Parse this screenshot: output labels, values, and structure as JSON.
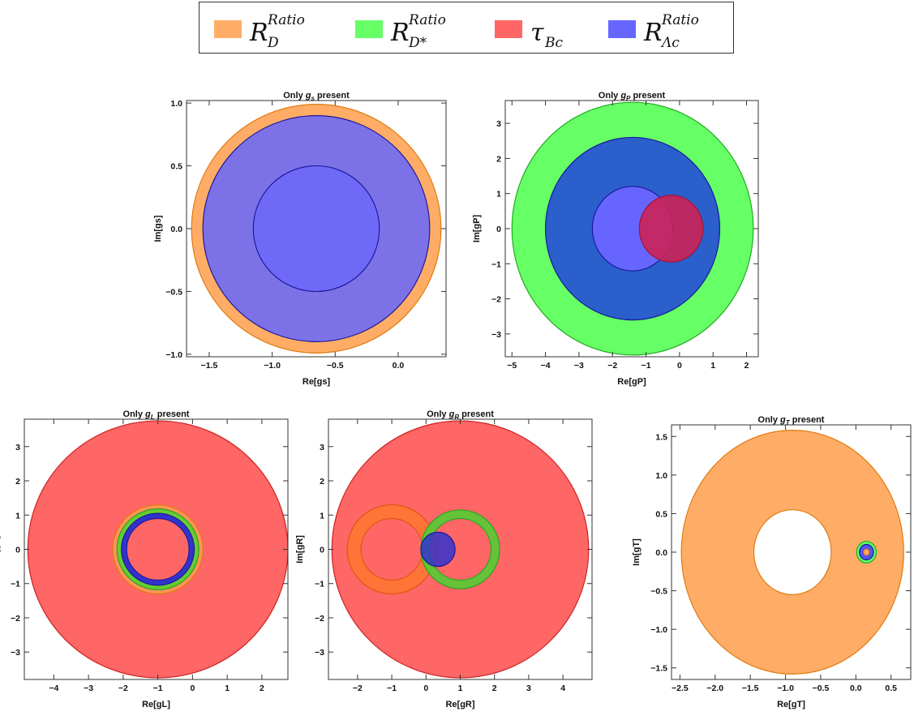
{
  "colors": {
    "orange_fill": "#FFAD66",
    "orange_edge": "#E07A10",
    "green_fill": "#66FF66",
    "green_edge": "#22AA22",
    "red_fill": "#FF6666",
    "red_edge": "#CC2222",
    "blue_fill": "#6666FF",
    "blue_edge": "#1A1A99"
  },
  "legend": {
    "items": [
      {
        "base": "R",
        "sup": "Ratio",
        "sub": "D",
        "color": "#FFAD66"
      },
      {
        "base": "R",
        "sup": "Ratio",
        "sub": "D*",
        "color": "#66FF66"
      },
      {
        "base": "τ",
        "sup": "",
        "sub": "Bc",
        "color": "#FF6666"
      },
      {
        "base": "R",
        "sup": "Ratio",
        "sub": "Λc",
        "color": "#6666FF"
      }
    ]
  },
  "chart_data": [
    {
      "type": "region",
      "title": "Only gs present",
      "xlabel": "Re[gs]",
      "ylabel": "Im[gs]",
      "xlim": [
        -1.68,
        0.38
      ],
      "ylim": [
        -1.02,
        1.02
      ],
      "xticks": [
        "-1.5",
        "-1.0",
        "-0.5",
        "0.0"
      ],
      "xtick_values": [
        -1.5,
        -1.0,
        -0.5,
        0.0
      ],
      "yticks": [
        "-1.0",
        "-0.5",
        "0.0",
        "0.5",
        "1.0"
      ],
      "ytick_values": [
        -1.0,
        -0.5,
        0.0,
        0.5,
        1.0
      ],
      "regions": [
        {
          "series": "R_D^Ratio",
          "color": "#FFAD66",
          "edge": "#E07A10",
          "center": [
            -0.65,
            0
          ],
          "r_outer": 0.99,
          "r_inner": 0
        },
        {
          "series": "R_Λc^Ratio",
          "color": "#6666FF",
          "edge": "#1A1A99",
          "center": [
            -0.65,
            0
          ],
          "r_outer": 0.9,
          "r_inner": 0.5,
          "opacity": 0.85,
          "inner_fill_opacity": 0.95
        }
      ]
    },
    {
      "type": "region",
      "title": "Only gP present",
      "xlabel": "Re[gP]",
      "ylabel": "Im[gP]",
      "xlim": [
        -5.2,
        2.35
      ],
      "ylim": [
        -3.65,
        3.65
      ],
      "xticks": [
        "-5",
        "-4",
        "-3",
        "-2",
        "-1",
        "0",
        "1",
        "2"
      ],
      "xtick_values": [
        -5,
        -4,
        -3,
        -2,
        -1,
        0,
        1,
        2
      ],
      "yticks": [
        "-3",
        "-2",
        "-1",
        "0",
        "1",
        "2",
        "3"
      ],
      "ytick_values": [
        -3,
        -2,
        -1,
        0,
        1,
        2,
        3
      ],
      "regions": [
        {
          "series": "R_D*^Ratio",
          "color": "#66FF66",
          "edge": "#22AA22",
          "center": [
            -1.4,
            0
          ],
          "r_outer": 3.6,
          "r_inner": 0
        },
        {
          "series": "R_Λc^Ratio",
          "color": "#2A5FCC",
          "edge": "#1A1A99",
          "center": [
            -1.4,
            0
          ],
          "r_outer": 2.6,
          "r_inner": 1.2,
          "opacity": 1,
          "inner_fill": "#6666FF"
        },
        {
          "series": "τ_Bc",
          "color": "#CC2255",
          "edge": "#AA1133",
          "center": [
            -0.25,
            0
          ],
          "r_outer": 0.95,
          "r_inner": 0,
          "opacity": 0.9
        }
      ]
    },
    {
      "type": "region",
      "title": "Only gL present",
      "xlabel": "Re[gL]",
      "ylabel": "Im[gL]",
      "xlim": [
        -4.85,
        2.75
      ],
      "ylim": [
        -3.8,
        3.8
      ],
      "xticks": [
        "-4",
        "-3",
        "-2",
        "-1",
        "0",
        "1",
        "2"
      ],
      "xtick_values": [
        -4,
        -3,
        -2,
        -1,
        0,
        1,
        2
      ],
      "yticks": [
        "-3",
        "-2",
        "-1",
        "0",
        "1",
        "2",
        "3"
      ],
      "ytick_values": [
        -3,
        -2,
        -1,
        0,
        1,
        2,
        3
      ],
      "regions": [
        {
          "series": "τ_Bc",
          "color": "#FF6666",
          "edge": "#CC2222",
          "center": [
            -1,
            0
          ],
          "r_outer": 3.75,
          "r_inner": 0
        },
        {
          "series": "R_D^Ratio",
          "color": "#FF9955",
          "edge": "#E07A10",
          "center": [
            -1,
            0
          ],
          "r_outer": 1.3,
          "r_inner": 1.18,
          "opacity": 0.9
        },
        {
          "series": "R_D*^Ratio",
          "color": "#66CC33",
          "edge": "#22AA22",
          "center": [
            -1,
            0
          ],
          "r_outer": 1.18,
          "r_inner": 1.02,
          "opacity": 1
        },
        {
          "series": "R_Λc^Ratio",
          "color": "#3333CC",
          "edge": "#1A1A99",
          "center": [
            -1,
            0
          ],
          "r_outer": 1.05,
          "r_inner": 0.9,
          "opacity": 1
        }
      ]
    },
    {
      "type": "region",
      "title": "Only gR present",
      "xlabel": "Re[gR]",
      "ylabel": "Im[gR]",
      "xlim": [
        -2.85,
        4.85
      ],
      "ylim": [
        -3.8,
        3.8
      ],
      "xticks": [
        "-2",
        "-1",
        "0",
        "1",
        "2",
        "3",
        "4"
      ],
      "xtick_values": [
        -2,
        -1,
        0,
        1,
        2,
        3,
        4
      ],
      "yticks": [
        "-3",
        "-2",
        "-1",
        "0",
        "1",
        "2",
        "3"
      ],
      "ytick_values": [
        -3,
        -2,
        -1,
        0,
        1,
        2,
        3
      ],
      "regions": [
        {
          "series": "τ_Bc",
          "color": "#FF6666",
          "edge": "#CC2222",
          "center": [
            1,
            0
          ],
          "r_outer": 3.75,
          "r_inner": 0
        },
        {
          "series": "R_D^Ratio",
          "color": "#FF7733",
          "edge": "#DD5511",
          "center": [
            -1,
            0
          ],
          "r_outer": 1.3,
          "r_inner": 0.9,
          "opacity": 0.9
        },
        {
          "series": "R_D*^Ratio",
          "color": "#55CC33",
          "edge": "#22AA22",
          "center": [
            1,
            0
          ],
          "r_outer": 1.15,
          "r_inner": 0.9,
          "opacity": 0.9
        },
        {
          "series": "R_Λc^Ratio",
          "color": "#3333CC",
          "edge": "#1A1A99",
          "center": [
            0.35,
            0
          ],
          "r_outer": 0.5,
          "r_inner": 0,
          "opacity": 0.85
        }
      ]
    },
    {
      "type": "region",
      "title": "Only gT present",
      "xlabel": "Re[gT]",
      "ylabel": "Im[gT]",
      "xlim": [
        -2.62,
        0.78
      ],
      "ylim": [
        -1.65,
        1.65
      ],
      "xticks": [
        "-2.5",
        "-2.0",
        "-1.5",
        "-1.0",
        "-0.5",
        "0.0",
        "0.5"
      ],
      "xtick_values": [
        -2.5,
        -2.0,
        -1.5,
        -1.0,
        -0.5,
        0.0,
        0.5
      ],
      "yticks": [
        "-1.5",
        "-1.0",
        "-0.5",
        "0.0",
        "0.5",
        "1.0",
        "1.5"
      ],
      "ytick_values": [
        -1.5,
        -1.0,
        -0.5,
        0.0,
        0.5,
        1.0,
        1.5
      ],
      "regions": [
        {
          "series": "R_D^Ratio",
          "color": "#FFAD66",
          "edge": "#E07A10",
          "center": [
            -0.9,
            0
          ],
          "r_outer": 1.58,
          "r_inner": 0.55
        },
        {
          "series": "R_D*^Ratio",
          "color": "#66FF66",
          "edge": "#22AA22",
          "center": [
            0.15,
            0
          ],
          "r_outer": 0.14,
          "r_inner": 0
        },
        {
          "series": "R_Λc^Ratio",
          "color": "#5555EE",
          "edge": "#1A1A99",
          "center": [
            0.15,
            0
          ],
          "r_outer": 0.1,
          "r_inner": 0
        },
        {
          "series": "R_D^Ratio",
          "color": "#FFAD66",
          "edge": "#E07A10",
          "center": [
            0.15,
            0
          ],
          "r_outer": 0.04,
          "r_inner": 0
        }
      ]
    }
  ]
}
